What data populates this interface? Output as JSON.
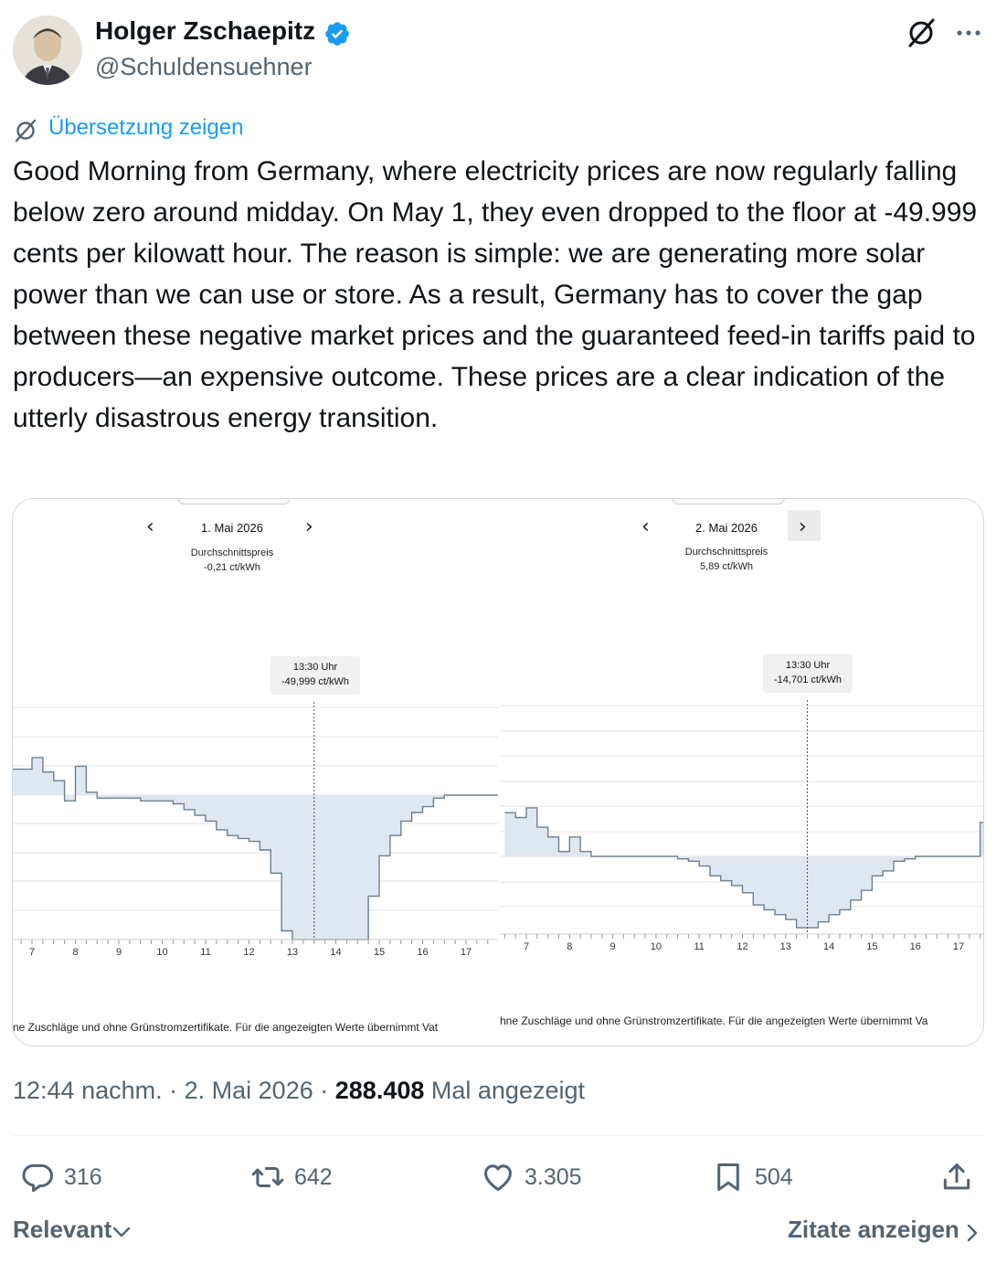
{
  "author": {
    "name": "Holger Zschaepitz",
    "handle": "@Schuldensuehner",
    "verified": true
  },
  "translation": {
    "label": "Übersetzung zeigen"
  },
  "tweet": {
    "text": "Good Morning from Germany, where electricity prices are now regularly falling below zero around midday. On May 1, they even dropped to the floor at -49.999 cents per kilowatt hour. The reason is simple: we are generating more solar power than we can use or store. As a result, Germany has to cover the gap between these negative market prices and the guaranteed feed-in tariffs paid to producers—an expensive outcome. These prices are a clear indication of the utterly disastrous energy transition."
  },
  "meta": {
    "time": "12:44 nachm.",
    "separator": "·",
    "date": "2. Mai 2026",
    "views_count": "288.408",
    "views_label": "Mal angezeigt"
  },
  "actions": {
    "replies": "316",
    "reposts": "642",
    "likes": "3.305",
    "bookmarks": "504"
  },
  "footer": {
    "sort_label": "Relevant",
    "quotes_label": "Zitate anzeigen"
  },
  "colors": {
    "accent": "#1d9bf0",
    "secondary_text": "#536471",
    "chart_fill": "#dfe7f0",
    "chart_line": "#6f7f8f"
  },
  "icons": {
    "verified": "verified-badge-icon",
    "grok": "grok-icon",
    "more": "more-dots-icon",
    "reply": "reply-bubble-icon",
    "repost": "repost-icon",
    "like": "heart-icon",
    "bookmark": "bookmark-icon",
    "share": "share-icon"
  },
  "chart_data": [
    {
      "type": "area",
      "date_label": "1. Mai 2026",
      "avg_label": "Durchschnittspreis",
      "avg_value": "-0,21 ct/kWh",
      "tooltip_time": "13:30 Uhr",
      "tooltip_price": "-49,999 ct/kWh",
      "x_ticks": [
        "7",
        "8",
        "9",
        "10",
        "11",
        "12",
        "13",
        "14",
        "15",
        "16",
        "17"
      ],
      "x": [
        6.5,
        6.75,
        7.0,
        7.25,
        7.5,
        7.75,
        8.0,
        8.25,
        8.5,
        8.75,
        9.0,
        9.25,
        9.5,
        9.75,
        10.0,
        10.25,
        10.5,
        10.75,
        11.0,
        11.25,
        11.5,
        11.75,
        12.0,
        12.25,
        12.5,
        12.75,
        13.0,
        13.25,
        13.5,
        13.75,
        14.0,
        14.25,
        14.5,
        14.75,
        15.0,
        15.25,
        15.5,
        15.75,
        16.0,
        16.25,
        16.5,
        16.75,
        17.0,
        17.25,
        17.5
      ],
      "values": [
        9,
        9,
        13,
        8,
        5,
        -2,
        10,
        1,
        -1,
        -1,
        -1,
        -1,
        -2,
        -2,
        -2,
        -3,
        -5,
        -7,
        -9,
        -12,
        -14,
        -15,
        -16,
        -19,
        -27,
        -47,
        -49.999,
        -49.999,
        -49.999,
        -49.999,
        -49.999,
        -49.999,
        -49.999,
        -35,
        -21,
        -14,
        -9,
        -6,
        -4,
        -1,
        0,
        0,
        0,
        0,
        0
      ],
      "ylim": [
        -50,
        25
      ],
      "grid": true,
      "footnote": "ne Zuschläge und ohne Grünstromzertifikate. Für die angezeigten Werte übernimmt Vat"
    },
    {
      "type": "area",
      "date_label": "2. Mai 2026",
      "avg_label": "Durchschnittspreis",
      "avg_value": "5,89 ct/kWh",
      "tooltip_time": "13:30 Uhr",
      "tooltip_price": "-14,701 ct/kWh",
      "x_ticks": [
        "7",
        "8",
        "9",
        "10",
        "11",
        "12",
        "13",
        "14",
        "15",
        "16",
        "17"
      ],
      "x": [
        6.5,
        6.75,
        7.0,
        7.25,
        7.5,
        7.75,
        8.0,
        8.25,
        8.5,
        8.75,
        9.0,
        9.25,
        9.5,
        9.75,
        10.0,
        10.25,
        10.5,
        10.75,
        11.0,
        11.25,
        11.5,
        11.75,
        12.0,
        12.25,
        12.5,
        12.75,
        13.0,
        13.25,
        13.5,
        13.75,
        14.0,
        14.25,
        14.5,
        14.75,
        15.0,
        15.25,
        15.5,
        15.75,
        16.0,
        16.25,
        16.5,
        16.75,
        17.0,
        17.25,
        17.5
      ],
      "values": [
        9,
        8,
        10,
        6,
        4,
        1,
        4,
        1,
        0,
        0,
        0,
        0,
        0,
        0,
        0,
        0,
        -0.5,
        -1,
        -2,
        -4,
        -5,
        -6,
        -7.5,
        -10,
        -11,
        -12,
        -13,
        -14.701,
        -14.701,
        -13.5,
        -12,
        -11,
        -9,
        -7,
        -4,
        -3,
        -1,
        -0.5,
        0,
        0,
        0,
        0,
        0,
        0,
        7
      ],
      "ylim": [
        -16,
        30
      ],
      "grid": true,
      "footnote": "hne Zuschläge und ohne Grünstromzertifikate. Für die angezeigten Werte übernimmt Va"
    }
  ]
}
